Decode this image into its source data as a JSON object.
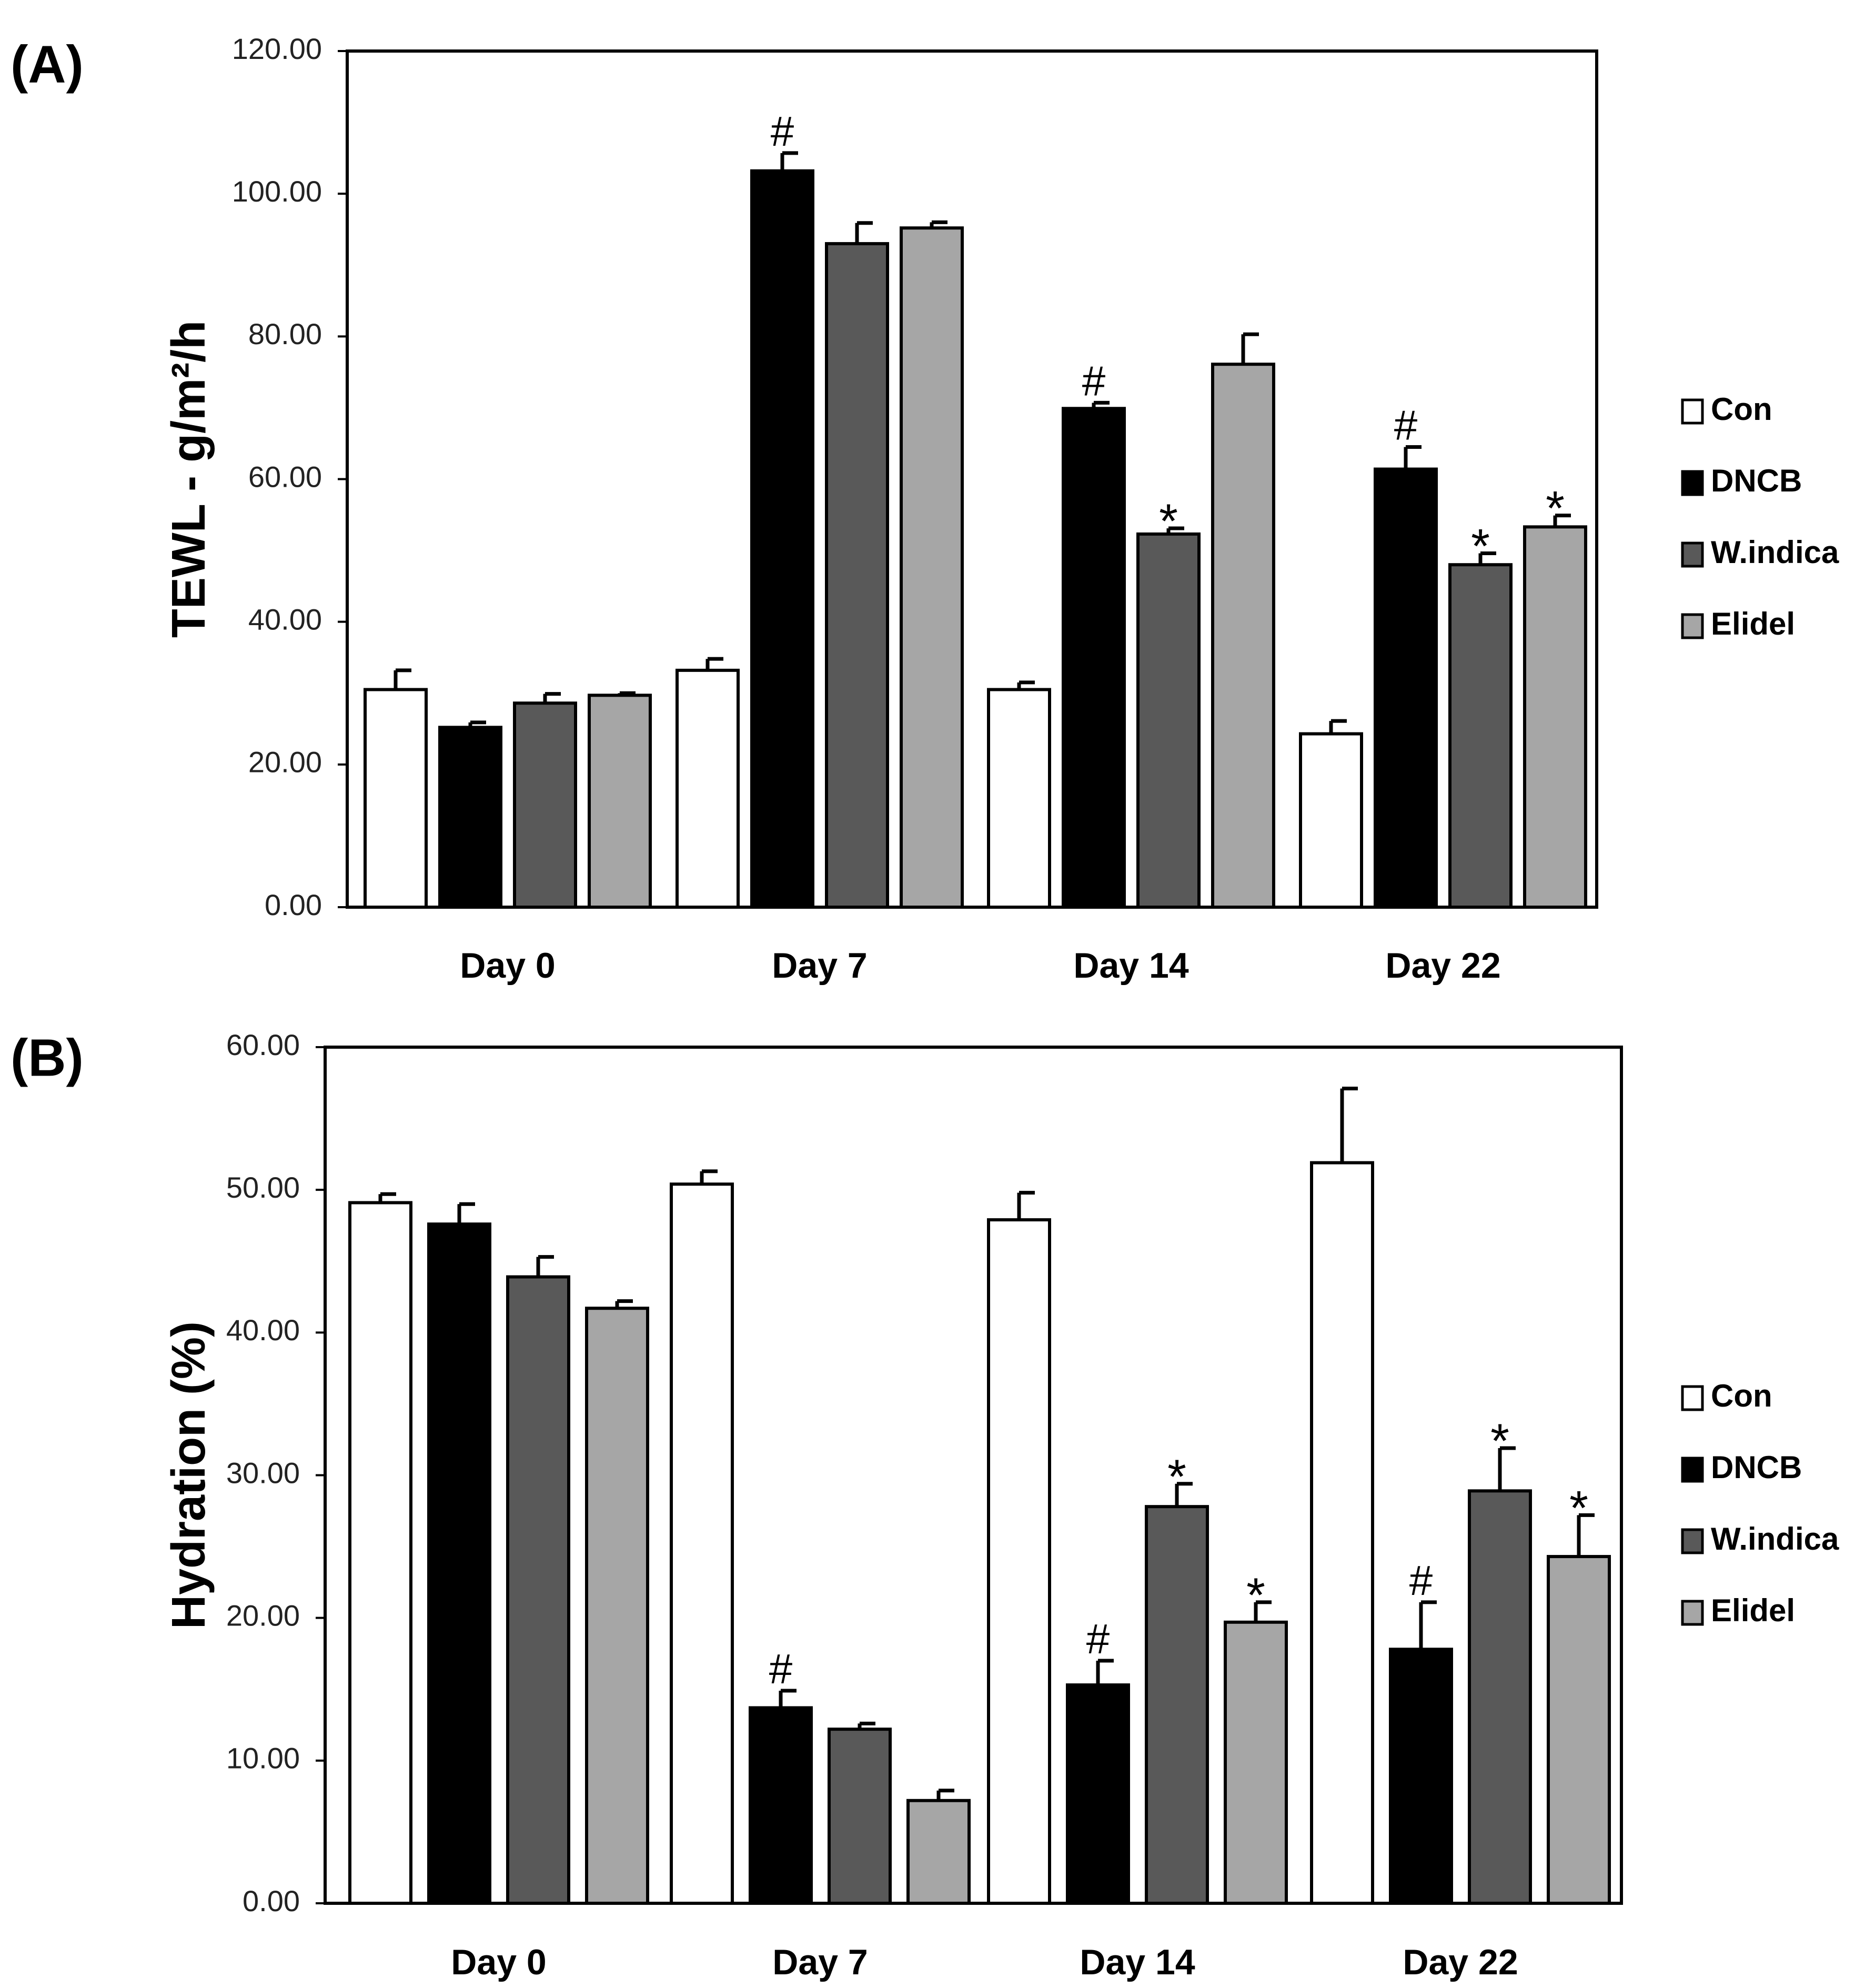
{
  "chart_data": [
    {
      "panel_label": "(A)",
      "type": "bar",
      "ylabel": "TEWL - g/m²/h",
      "ylim": [
        0,
        120
      ],
      "yticks": [
        "0.00",
        "20.00",
        "40.00",
        "60.00",
        "80.00",
        "100.00",
        "120.00"
      ],
      "categories": [
        "Day 0",
        "Day 7",
        "Day 14",
        "Day 22"
      ],
      "series": [
        {
          "name": "Con",
          "color": "#ffffff",
          "values": [
            30.5,
            33.2,
            30.5,
            24.3
          ],
          "errors": [
            2.7,
            1.6,
            1.0,
            1.8
          ],
          "marks": [
            "",
            "",
            "",
            ""
          ]
        },
        {
          "name": "DNCB",
          "color": "#000000",
          "values": [
            25.2,
            103.2,
            69.9,
            61.4
          ],
          "errors": [
            0.7,
            2.5,
            0.8,
            3.1
          ],
          "marks": [
            "",
            "#",
            "#",
            "#"
          ]
        },
        {
          "name": "W.indica",
          "color": "#595959",
          "values": [
            28.6,
            93.0,
            52.3,
            48.0
          ],
          "errors": [
            1.3,
            2.9,
            0.8,
            1.6
          ],
          "marks": [
            "",
            "",
            "*",
            "*"
          ]
        },
        {
          "name": "Elidel",
          "color": "#a6a6a6",
          "values": [
            29.7,
            95.2,
            76.1,
            53.3
          ],
          "errors": [
            0.3,
            0.8,
            4.2,
            1.6
          ],
          "marks": [
            "",
            "",
            "",
            "*"
          ]
        }
      ]
    },
    {
      "panel_label": "(B)",
      "type": "bar",
      "ylabel": "Hydration (%)",
      "ylim": [
        0,
        60
      ],
      "yticks": [
        "0.00",
        "10.00",
        "20.00",
        "30.00",
        "40.00",
        "50.00",
        "60.00"
      ],
      "categories": [
        "Day 0",
        "Day 7",
        "Day 14",
        "Day 22"
      ],
      "series": [
        {
          "name": "Con",
          "color": "#ffffff",
          "values": [
            49.1,
            50.4,
            47.9,
            51.9
          ],
          "errors": [
            0.6,
            0.9,
            1.9,
            5.2
          ],
          "marks": [
            "",
            "",
            "",
            ""
          ]
        },
        {
          "name": "DNCB",
          "color": "#000000",
          "values": [
            47.6,
            13.7,
            15.3,
            17.8
          ],
          "errors": [
            1.4,
            1.2,
            1.7,
            3.3
          ],
          "marks": [
            "",
            "#",
            "#",
            "#"
          ]
        },
        {
          "name": "W.indica",
          "color": "#595959",
          "values": [
            43.9,
            12.2,
            27.8,
            28.9
          ],
          "errors": [
            1.4,
            0.4,
            1.6,
            3.0
          ],
          "marks": [
            "",
            "",
            "*",
            "*"
          ]
        },
        {
          "name": "Elidel",
          "color": "#a6a6a6",
          "values": [
            41.7,
            7.2,
            19.7,
            24.3
          ],
          "errors": [
            0.5,
            0.7,
            1.4,
            2.9
          ],
          "marks": [
            "",
            "",
            "*",
            "*"
          ]
        }
      ]
    }
  ]
}
